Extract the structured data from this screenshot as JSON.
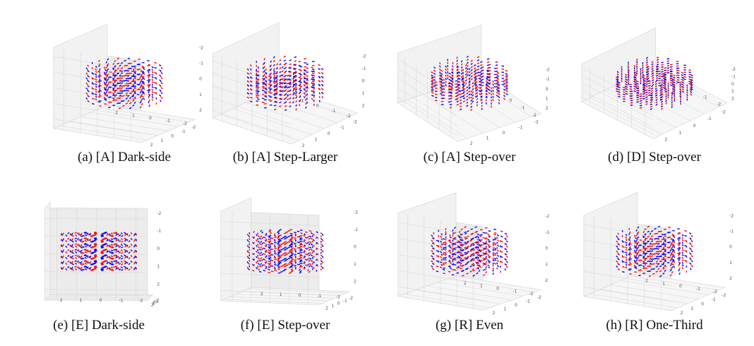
{
  "colors": {
    "series_a": "#ff0000",
    "series_b": "#0000ff",
    "pane": "#ececec",
    "grid": "#d4d4d4",
    "axis": "#9a9a9a"
  },
  "tick_labels": [
    "-2",
    "-1",
    "0",
    "1",
    "2"
  ],
  "panels": [
    {
      "caption": "(a) [A] Dark-side"
    },
    {
      "caption": "(b) [A] Step-Larger"
    },
    {
      "caption": "(c) [A] Step-over"
    },
    {
      "caption": "(d) [D] Step-over"
    },
    {
      "caption": "(e) [E] Dark-side"
    },
    {
      "caption": "(f) [E] Step-over"
    },
    {
      "caption": "(g) [R] Even"
    },
    {
      "caption": "(h) [R] One-Third"
    }
  ]
}
